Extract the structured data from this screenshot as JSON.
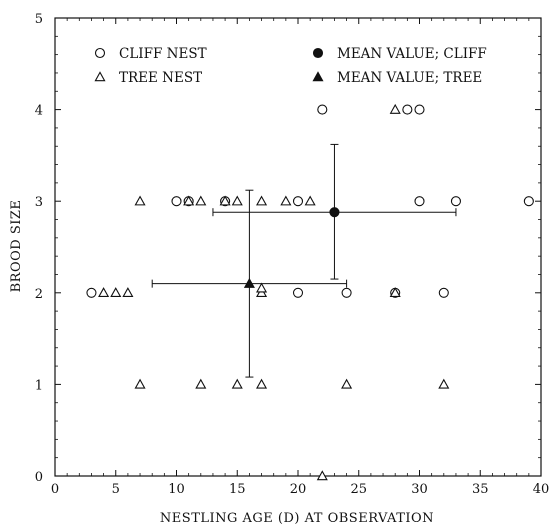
{
  "chart_data": {
    "type": "scatter",
    "title": "",
    "xlabel": "NESTLING AGE (D) AT OBSERVATION",
    "ylabel": "BROOD SIZE",
    "xlim": [
      0,
      40
    ],
    "ylim": [
      0,
      5
    ],
    "xticks": [
      "0",
      "5",
      "10",
      "15",
      "20",
      "25",
      "30",
      "35",
      "40"
    ],
    "yticks": [
      "0",
      "1",
      "2",
      "3",
      "4",
      "5"
    ],
    "grid": false,
    "legend_placement": "top, two columns",
    "series": [
      {
        "name": "CLIFF NEST",
        "marker": "open-circle",
        "points": [
          [
            3,
            2
          ],
          [
            20,
            2
          ],
          [
            24,
            2
          ],
          [
            28,
            2
          ],
          [
            32,
            2
          ],
          [
            10,
            3
          ],
          [
            11,
            3
          ],
          [
            14,
            3
          ],
          [
            20,
            3
          ],
          [
            30,
            3
          ],
          [
            33,
            3
          ],
          [
            39,
            3
          ],
          [
            22,
            4
          ],
          [
            29,
            4
          ],
          [
            30,
            4
          ]
        ]
      },
      {
        "name": "TREE NEST",
        "marker": "open-triangle",
        "points": [
          [
            22,
            0
          ],
          [
            7,
            1
          ],
          [
            12,
            1
          ],
          [
            15,
            1
          ],
          [
            17,
            1
          ],
          [
            24,
            1
          ],
          [
            32,
            1
          ],
          [
            4,
            2
          ],
          [
            5,
            2
          ],
          [
            6,
            2
          ],
          [
            17,
            2
          ],
          [
            17,
            2.05
          ],
          [
            28,
            2
          ],
          [
            7,
            3
          ],
          [
            11,
            3
          ],
          [
            12,
            3
          ],
          [
            14,
            3
          ],
          [
            15,
            3
          ],
          [
            17,
            3
          ],
          [
            19,
            3
          ],
          [
            21,
            3
          ],
          [
            28,
            4
          ]
        ]
      },
      {
        "name": "MEAN VALUE; CLIFF",
        "marker": "filled-circle",
        "points": [
          [
            23,
            2.88
          ]
        ],
        "x_error": [
          [
            13,
            33
          ]
        ],
        "y_error": [
          [
            2.15,
            3.62
          ]
        ]
      },
      {
        "name": "MEAN VALUE; TREE",
        "marker": "filled-triangle",
        "points": [
          [
            16,
            2.1
          ]
        ],
        "x_error": [
          [
            8,
            24
          ]
        ],
        "y_error": [
          [
            1.08,
            3.12
          ]
        ]
      }
    ]
  },
  "colors": {
    "ink": "#111111",
    "background": "#ffffff"
  }
}
